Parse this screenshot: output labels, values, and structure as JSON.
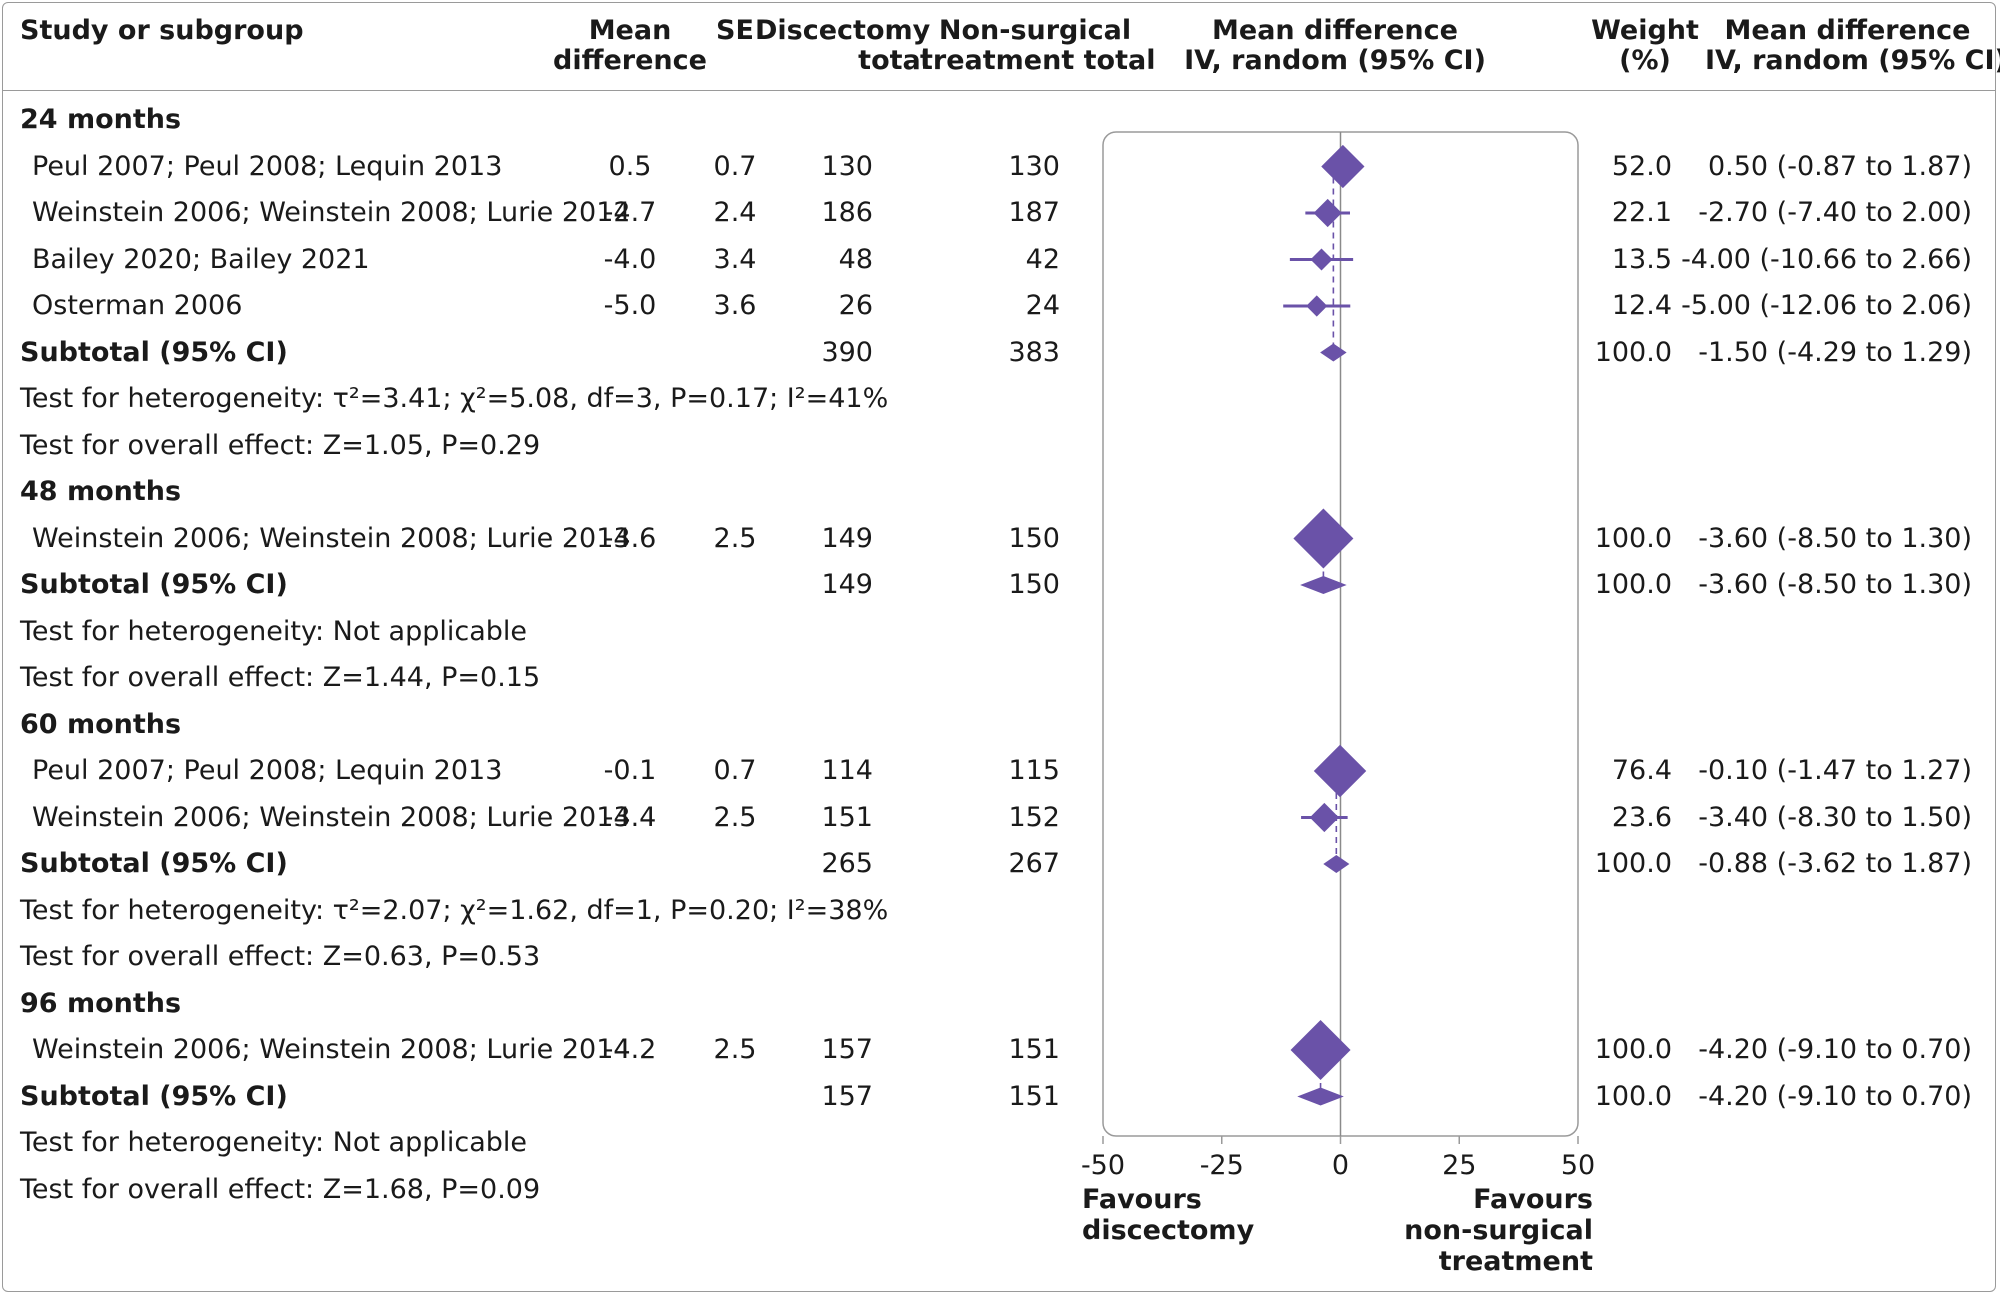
{
  "headers": {
    "study": "Study or subgroup",
    "md": [
      "Mean",
      "difference"
    ],
    "se": "SE",
    "disc": [
      "Discectomy",
      "total"
    ],
    "nonsurg": [
      "Non-surgical",
      "treatment total"
    ],
    "plot": [
      "Mean difference",
      "IV, random (95% CI)"
    ],
    "weight": [
      "Weight",
      "(%)"
    ],
    "ci": [
      "Mean difference",
      "IV, random (95% CI)"
    ]
  },
  "rows": [
    {
      "kind": "group",
      "label": "24 months"
    },
    {
      "kind": "study",
      "label": "Peul 2007; Peul 2008; Lequin 2013",
      "md": "0.5",
      "se": "0.7",
      "disc": "130",
      "nonsurg": "130",
      "weight": "52.0",
      "ci": "0.50 (-0.87 to 1.87)"
    },
    {
      "kind": "study",
      "label": "Weinstein 2006; Weinstein 2008; Lurie 2014",
      "md": "-2.7",
      "se": "2.4",
      "disc": "186",
      "nonsurg": "187",
      "weight": "22.1",
      "ci": "-2.70 (-7.40 to 2.00)"
    },
    {
      "kind": "study",
      "label": "Bailey 2020; Bailey 2021",
      "md": "-4.0",
      "se": "3.4",
      "disc": "48",
      "nonsurg": "42",
      "weight": "13.5",
      "ci": "-4.00 (-10.66 to 2.66)"
    },
    {
      "kind": "study",
      "label": "Osterman 2006",
      "md": "-5.0",
      "se": "3.6",
      "disc": "26",
      "nonsurg": "24",
      "weight": "12.4",
      "ci": "-5.00 (-12.06 to 2.06)"
    },
    {
      "kind": "subtotal",
      "label": "Subtotal (95% CI)",
      "disc": "390",
      "nonsurg": "383",
      "weight": "100.0",
      "ci": "-1.50 (-4.29 to 1.29)"
    },
    {
      "kind": "note",
      "label": "Test for heterogeneity: τ²=3.41; χ²=5.08, df=3, P=0.17; I²=41%"
    },
    {
      "kind": "note",
      "label": "Test for overall effect: Z=1.05, P=0.29"
    },
    {
      "kind": "group",
      "label": "48 months"
    },
    {
      "kind": "study",
      "label": "Weinstein 2006; Weinstein 2008; Lurie 2014",
      "md": "-3.6",
      "se": "2.5",
      "disc": "149",
      "nonsurg": "150",
      "weight": "100.0",
      "ci": "-3.60 (-8.50 to 1.30)"
    },
    {
      "kind": "subtotal",
      "label": "Subtotal (95% CI)",
      "disc": "149",
      "nonsurg": "150",
      "weight": "100.0",
      "ci": "-3.60 (-8.50 to 1.30)"
    },
    {
      "kind": "note",
      "label": "Test for heterogeneity: Not applicable"
    },
    {
      "kind": "note",
      "label": "Test for overall effect: Z=1.44, P=0.15"
    },
    {
      "kind": "group",
      "label": "60 months"
    },
    {
      "kind": "study",
      "label": "Peul 2007; Peul 2008; Lequin 2013",
      "md": "-0.1",
      "se": "0.7",
      "disc": "114",
      "nonsurg": "115",
      "weight": "76.4",
      "ci": "-0.10 (-1.47 to 1.27)"
    },
    {
      "kind": "study",
      "label": "Weinstein 2006; Weinstein 2008; Lurie 2014",
      "md": "-3.4",
      "se": "2.5",
      "disc": "151",
      "nonsurg": "152",
      "weight": "23.6",
      "ci": "-3.40 (-8.30 to 1.50)"
    },
    {
      "kind": "subtotal",
      "label": "Subtotal (95% CI)",
      "disc": "265",
      "nonsurg": "267",
      "weight": "100.0",
      "ci": "-0.88 (-3.62 to 1.87)"
    },
    {
      "kind": "note",
      "label": "Test for heterogeneity: τ²=2.07; χ²=1.62, df=1, P=0.20; I²=38%"
    },
    {
      "kind": "note",
      "label": "Test for overall effect: Z=0.63, P=0.53"
    },
    {
      "kind": "group",
      "label": "96 months"
    },
    {
      "kind": "study",
      "label": "Weinstein 2006; Weinstein 2008; Lurie 2014",
      "md": "-4.2",
      "se": "2.5",
      "disc": "157",
      "nonsurg": "151",
      "weight": "100.0",
      "ci": "-4.20 (-9.10 to 0.70)"
    },
    {
      "kind": "subtotal",
      "label": "Subtotal (95% CI)",
      "disc": "157",
      "nonsurg": "151",
      "weight": "100.0",
      "ci": "-4.20 (-9.10 to 0.70)"
    },
    {
      "kind": "note",
      "label": "Test for heterogeneity: Not applicable"
    },
    {
      "kind": "note",
      "label": "Test for overall effect: Z=1.68, P=0.09"
    }
  ],
  "footer": {
    "left": [
      "Favours",
      "discectomy"
    ],
    "right": [
      "Favours",
      "non-surgical",
      "treatment"
    ]
  },
  "chart_data": {
    "type": "forest",
    "xlim": [
      -50,
      50
    ],
    "x_ticks": [
      -50,
      -25,
      0,
      25,
      50
    ],
    "reference_line": 0,
    "marker_color": "#6a52a8",
    "studies": [
      {
        "group": "24 months",
        "label": "Peul 2007; Peul 2008; Lequin 2013",
        "estimate": 0.5,
        "lower": -0.87,
        "upper": 1.87,
        "weight": 52.0
      },
      {
        "group": "24 months",
        "label": "Weinstein 2006; Weinstein 2008; Lurie 2014",
        "estimate": -2.7,
        "lower": -7.4,
        "upper": 2.0,
        "weight": 22.1
      },
      {
        "group": "24 months",
        "label": "Bailey 2020; Bailey 2021",
        "estimate": -4.0,
        "lower": -10.66,
        "upper": 2.66,
        "weight": 13.5
      },
      {
        "group": "24 months",
        "label": "Osterman 2006",
        "estimate": -5.0,
        "lower": -12.06,
        "upper": 2.06,
        "weight": 12.4
      },
      {
        "group": "48 months",
        "label": "Weinstein 2006; Weinstein 2008; Lurie 2014",
        "estimate": -3.6,
        "lower": -8.5,
        "upper": 1.3,
        "weight": 100.0
      },
      {
        "group": "60 months",
        "label": "Peul 2007; Peul 2008; Lequin 2013",
        "estimate": -0.1,
        "lower": -1.47,
        "upper": 1.27,
        "weight": 76.4
      },
      {
        "group": "60 months",
        "label": "Weinstein 2006; Weinstein 2008; Lurie 2014",
        "estimate": -3.4,
        "lower": -8.3,
        "upper": 1.5,
        "weight": 23.6
      },
      {
        "group": "96 months",
        "label": "Weinstein 2006; Weinstein 2008; Lurie 2014",
        "estimate": -4.2,
        "lower": -9.1,
        "upper": 0.7,
        "weight": 100.0
      }
    ],
    "subtotals": [
      {
        "group": "24 months",
        "estimate": -1.5,
        "lower": -4.29,
        "upper": 1.29
      },
      {
        "group": "48 months",
        "estimate": -3.6,
        "lower": -8.5,
        "upper": 1.3
      },
      {
        "group": "60 months",
        "estimate": -0.88,
        "lower": -3.62,
        "upper": 1.87
      },
      {
        "group": "96 months",
        "estimate": -4.2,
        "lower": -9.1,
        "upper": 0.7
      }
    ]
  }
}
